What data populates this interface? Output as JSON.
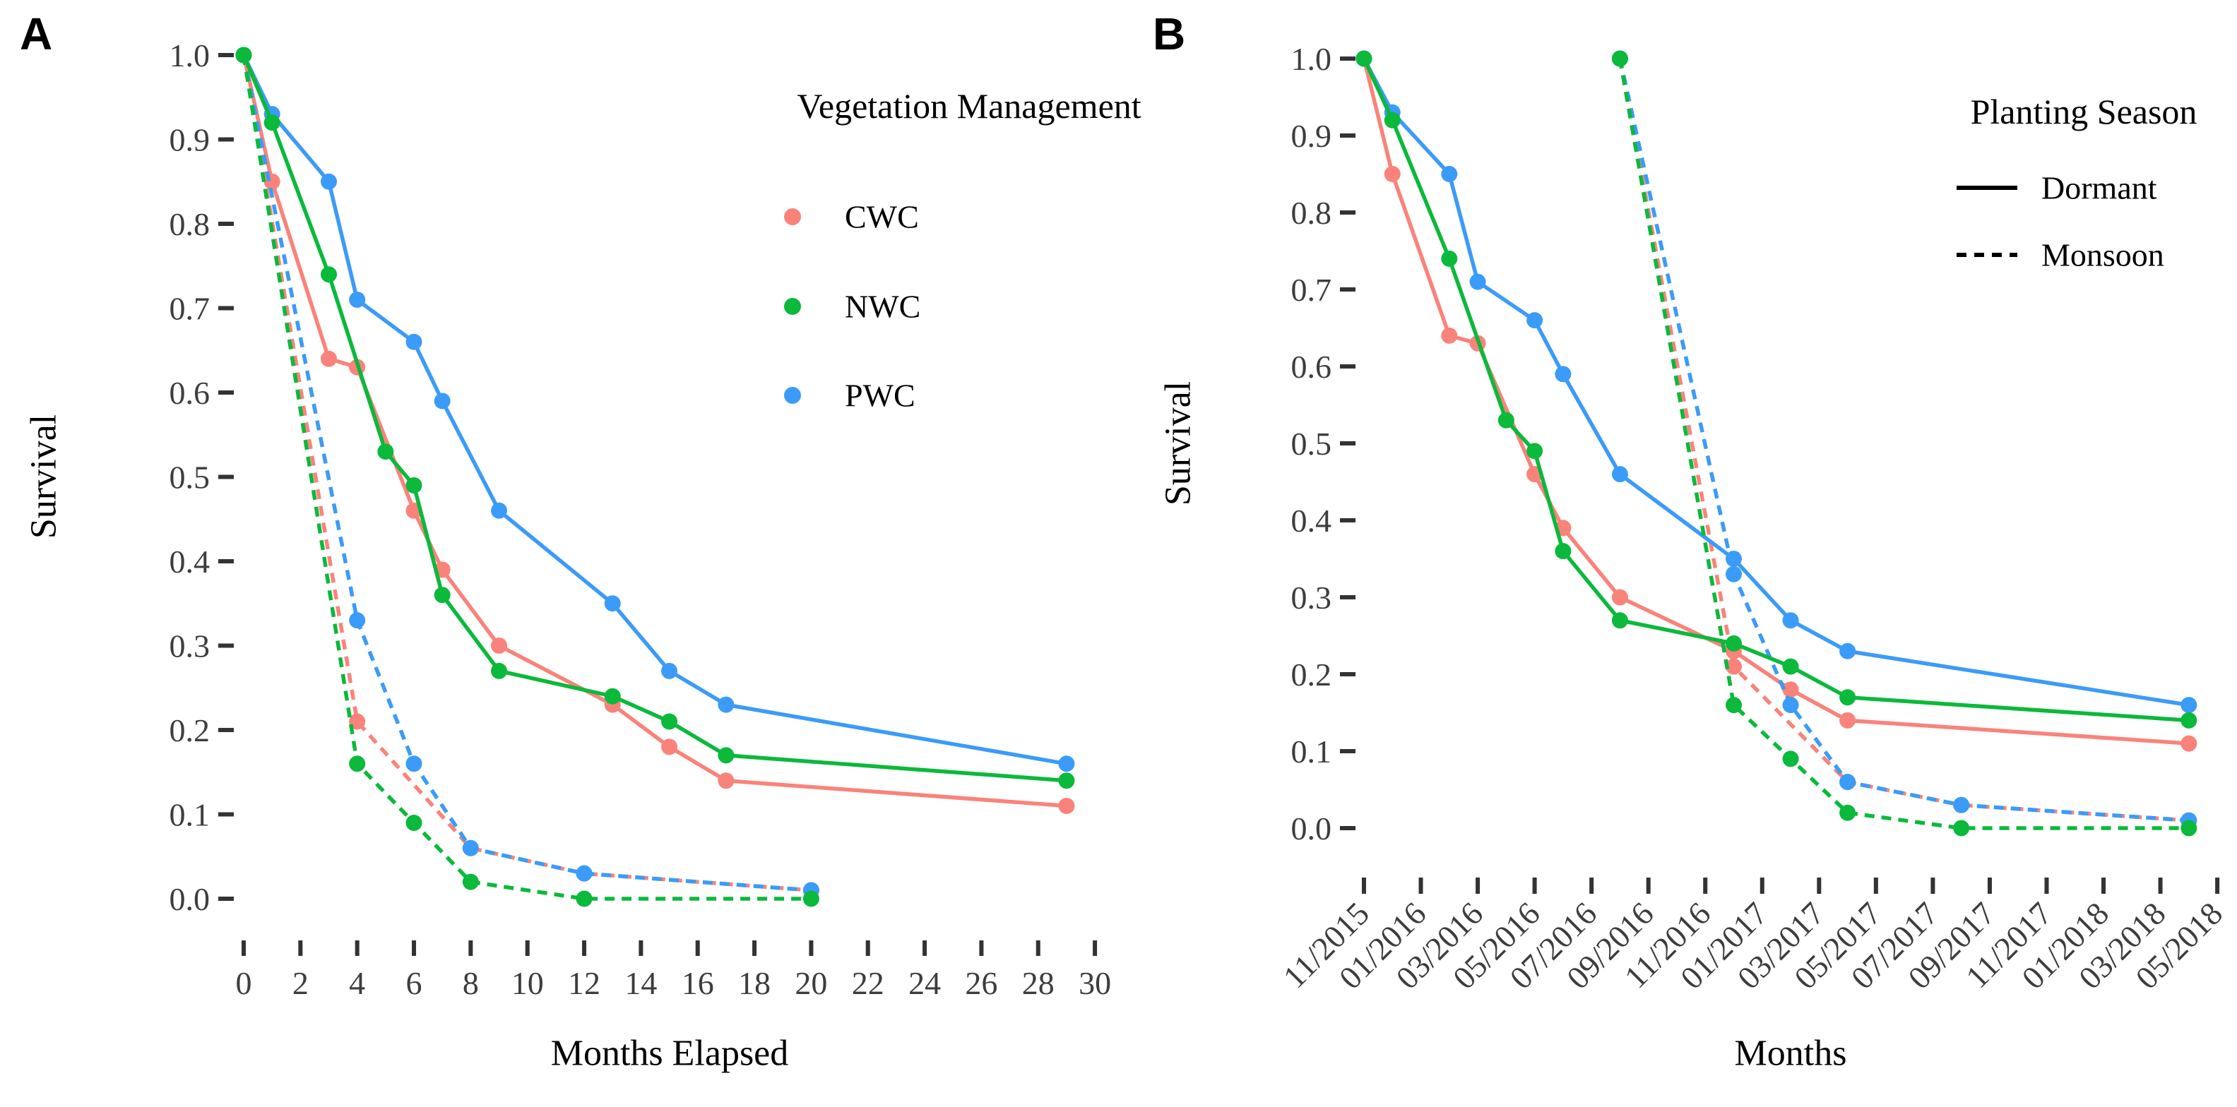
{
  "figure": {
    "background": "#FFFFFF",
    "panel_a": {
      "label": "A",
      "y_axis_title": "Survival",
      "x_axis_title": "Months Elapsed",
      "legend": {
        "title": "Vegetation Management",
        "items": [
          {
            "label": "CWC",
            "color": "#F9837A"
          },
          {
            "label": "NWC",
            "color": "#0BB93B"
          },
          {
            "label": "PWC",
            "color": "#3B9BF8"
          }
        ]
      }
    },
    "panel_b": {
      "label": "B",
      "y_axis_title": "Survival",
      "x_axis_title": "Months",
      "legend": {
        "title": "Planting Season",
        "items": [
          {
            "label": "Dormant",
            "linetype": "solid",
            "color": "#000000"
          },
          {
            "label": "Monsoon",
            "linetype": "dashed",
            "color": "#000000"
          }
        ]
      }
    }
  },
  "chart_data": [
    {
      "type": "line",
      "panel": "A",
      "title": "Survival by vegetation management, months elapsed since planting",
      "xlabel": "Months Elapsed",
      "ylabel": "Survival",
      "xlim": [
        0,
        30
      ],
      "ylim": [
        0.0,
        1.0
      ],
      "grid": false,
      "legend_position": "top-right-inside",
      "x_ticks": [
        0,
        2,
        4,
        6,
        8,
        10,
        12,
        14,
        16,
        18,
        20,
        22,
        24,
        26,
        28,
        30
      ],
      "y_ticks": [
        0.0,
        0.1,
        0.2,
        0.3,
        0.4,
        0.5,
        0.6,
        0.7,
        0.8,
        0.9,
        1.0
      ],
      "series": [
        {
          "name": "CWC Dormant",
          "color": "#F9837A",
          "linetype": "solid",
          "marker": true,
          "x": [
            0,
            1,
            3,
            4,
            6,
            7,
            9,
            13,
            15,
            17,
            29
          ],
          "y": [
            1.0,
            0.85,
            0.64,
            0.63,
            0.46,
            0.39,
            0.3,
            0.23,
            0.18,
            0.14,
            0.11
          ]
        },
        {
          "name": "CWC Monsoon",
          "color": "#F9837A",
          "linetype": "dashed",
          "marker": true,
          "x": [
            0,
            4,
            8,
            12,
            20
          ],
          "y": [
            1.0,
            0.21,
            0.06,
            0.03,
            0.01
          ]
        },
        {
          "name": "PWC Dormant",
          "color": "#3B9BF8",
          "linetype": "solid",
          "marker": true,
          "x": [
            0,
            1,
            3,
            4,
            6,
            7,
            9,
            13,
            15,
            17,
            29
          ],
          "y": [
            1.0,
            0.93,
            0.85,
            0.71,
            0.66,
            0.59,
            0.46,
            0.35,
            0.27,
            0.23,
            0.16
          ]
        },
        {
          "name": "PWC Monsoon",
          "color": "#3B9BF8",
          "linetype": "dashed",
          "marker": true,
          "x": [
            0,
            4,
            6,
            8,
            12,
            20
          ],
          "y": [
            1.0,
            0.33,
            0.16,
            0.06,
            0.03,
            0.01
          ]
        },
        {
          "name": "NWC Dormant",
          "color": "#0BB93B",
          "linetype": "solid",
          "marker": true,
          "x": [
            0,
            1,
            3,
            5,
            6,
            7,
            9,
            13,
            15,
            17,
            29
          ],
          "y": [
            1.0,
            0.92,
            0.74,
            0.53,
            0.49,
            0.36,
            0.27,
            0.24,
            0.21,
            0.17,
            0.14
          ]
        },
        {
          "name": "NWC Monsoon",
          "color": "#0BB93B",
          "linetype": "dashed",
          "marker": true,
          "x": [
            0,
            4,
            6,
            8,
            12,
            20
          ],
          "y": [
            1.0,
            0.16,
            0.09,
            0.02,
            0.0,
            0.0
          ]
        }
      ]
    },
    {
      "type": "line",
      "panel": "B",
      "title": "Survival by vegetation management and planting season, calendar months",
      "xlabel": "Months",
      "ylabel": "Survival",
      "xlim": [
        0,
        30
      ],
      "ylim": [
        0.0,
        1.0
      ],
      "grid": false,
      "legend_position": "top-right-inside",
      "x_ticks": [
        0,
        2,
        4,
        6,
        8,
        10,
        12,
        14,
        16,
        18,
        20,
        22,
        24,
        26,
        28,
        30
      ],
      "x_tick_labels": [
        "11/2015",
        "01/2016",
        "03/2016",
        "05/2016",
        "07/2016",
        "09/2016",
        "11/2016",
        "01/2017",
        "03/2017",
        "05/2017",
        "07/2017",
        "09/2017",
        "11/2017",
        "01/2018",
        "03/2018",
        "05/2018"
      ],
      "y_ticks": [
        0.0,
        0.1,
        0.2,
        0.3,
        0.4,
        0.5,
        0.6,
        0.7,
        0.8,
        0.9,
        1.0
      ],
      "series": [
        {
          "name": "CWC Dormant",
          "color": "#F9837A",
          "linetype": "solid",
          "marker": true,
          "x": [
            0,
            1,
            3,
            4,
            6,
            7,
            9,
            13,
            15,
            17,
            29
          ],
          "dates": [
            "11/2015",
            "12/2015",
            "02/2016",
            "03/2016",
            "05/2016",
            "06/2016",
            "08/2016",
            "12/2016",
            "02/2017",
            "04/2017",
            "04/2018"
          ],
          "y": [
            1.0,
            0.85,
            0.64,
            0.63,
            0.46,
            0.39,
            0.3,
            0.23,
            0.18,
            0.14,
            0.11
          ]
        },
        {
          "name": "CWC Monsoon",
          "color": "#F9837A",
          "linetype": "dashed",
          "marker": true,
          "x": [
            9,
            13,
            17,
            21,
            29
          ],
          "dates": [
            "08/2016",
            "12/2016",
            "04/2017",
            "08/2017",
            "04/2018"
          ],
          "y": [
            1.0,
            0.21,
            0.06,
            0.03,
            0.01
          ]
        },
        {
          "name": "PWC Dormant",
          "color": "#3B9BF8",
          "linetype": "solid",
          "marker": true,
          "x": [
            0,
            1,
            3,
            4,
            6,
            7,
            9,
            13,
            15,
            17,
            29
          ],
          "dates": [
            "11/2015",
            "12/2015",
            "02/2016",
            "03/2016",
            "05/2016",
            "06/2016",
            "08/2016",
            "12/2016",
            "02/2017",
            "04/2017",
            "04/2018"
          ],
          "y": [
            1.0,
            0.93,
            0.85,
            0.71,
            0.66,
            0.59,
            0.46,
            0.35,
            0.27,
            0.23,
            0.16
          ]
        },
        {
          "name": "PWC Monsoon",
          "color": "#3B9BF8",
          "linetype": "dashed",
          "marker": true,
          "x": [
            9,
            13,
            15,
            17,
            21,
            29
          ],
          "dates": [
            "08/2016",
            "12/2016",
            "02/2017",
            "04/2017",
            "08/2017",
            "04/2018"
          ],
          "y": [
            1.0,
            0.33,
            0.16,
            0.06,
            0.03,
            0.01
          ]
        },
        {
          "name": "NWC Dormant",
          "color": "#0BB93B",
          "linetype": "solid",
          "marker": true,
          "x": [
            0,
            1,
            3,
            5,
            6,
            7,
            9,
            13,
            15,
            17,
            29
          ],
          "dates": [
            "11/2015",
            "12/2015",
            "02/2016",
            "04/2016",
            "05/2016",
            "06/2016",
            "08/2016",
            "12/2016",
            "02/2017",
            "04/2017",
            "04/2018"
          ],
          "y": [
            1.0,
            0.92,
            0.74,
            0.53,
            0.49,
            0.36,
            0.27,
            0.24,
            0.21,
            0.17,
            0.14
          ]
        },
        {
          "name": "NWC Monsoon",
          "color": "#0BB93B",
          "linetype": "dashed",
          "marker": true,
          "x": [
            9,
            13,
            15,
            17,
            21,
            29
          ],
          "dates": [
            "08/2016",
            "12/2016",
            "02/2017",
            "04/2017",
            "08/2017",
            "04/2018"
          ],
          "y": [
            1.0,
            0.16,
            0.09,
            0.02,
            0.0,
            0.0
          ]
        }
      ]
    }
  ]
}
